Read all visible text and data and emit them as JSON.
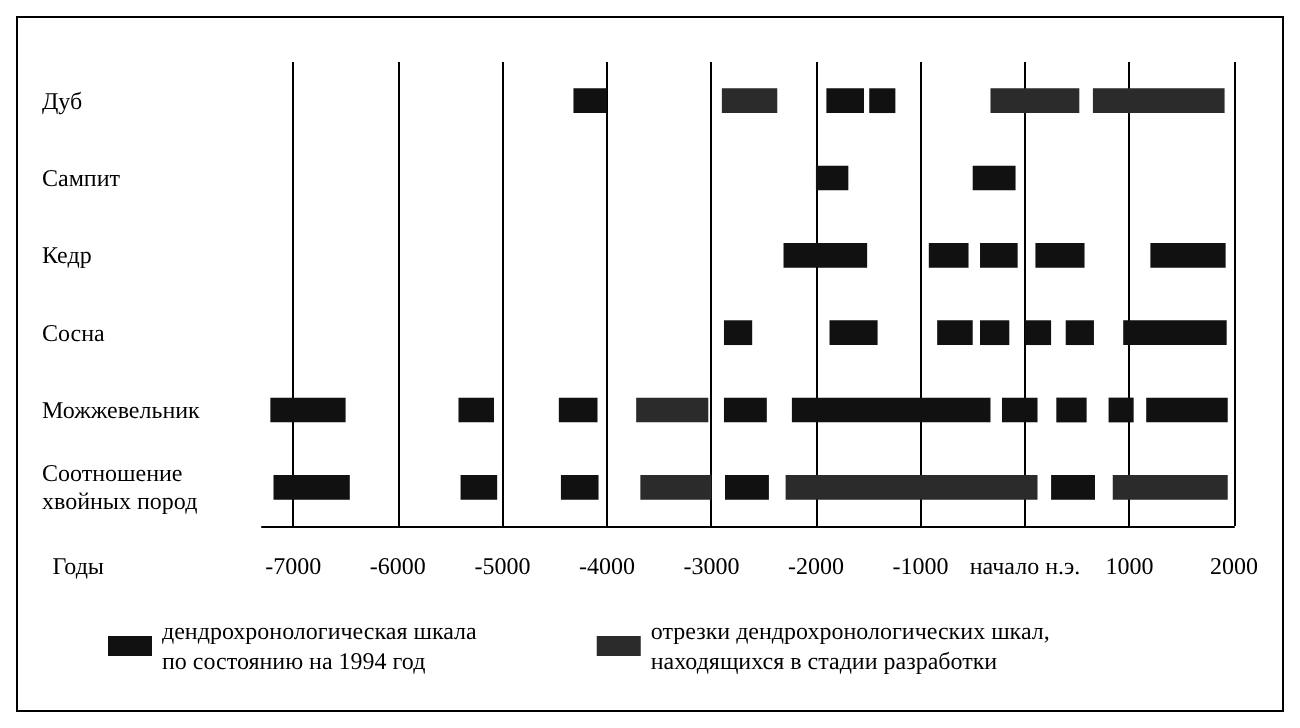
{
  "chart_data": {
    "type": "bar",
    "orientation": "horizontal",
    "xlabel": "Годы",
    "categories": [
      "Дуб",
      "Сампит",
      "Кедр",
      "Сосна",
      "Можжевельник",
      "Соотношение хвойных пород"
    ],
    "xlim": [
      -7300,
      2000
    ],
    "xticks": [
      -7000,
      -6000,
      -5000,
      -4000,
      -3000,
      -2000,
      -1000,
      {
        "value": 0,
        "label": "начало н.э."
      },
      1000,
      2000
    ],
    "grid": "x",
    "legend": "bottom",
    "series": [
      {
        "name": "дендрохронологическая шкала\nпо состоянию на 1994 год",
        "color": "#111111",
        "base": [
          -4320,
          -2000,
          -2310,
          -2880,
          -7220,
          -7190
        ],
        "values": [
          320,
          310,
          800,
          270,
          720,
          730
        ]
      },
      {
        "color": "#111111",
        "base": [
          -1900,
          -500,
          -920,
          -1870,
          -5420,
          -5400
        ],
        "values": [
          360,
          410,
          380,
          460,
          340,
          350
        ]
      },
      {
        "color": "#111111",
        "base": [
          -1490,
          null,
          -430,
          -840,
          -4460,
          -4440
        ],
        "values": [
          250,
          null,
          360,
          340,
          370,
          360
        ]
      },
      {
        "color": "#111111",
        "base": [
          null,
          null,
          100,
          -430,
          -2880,
          -2870
        ],
        "values": [
          null,
          null,
          470,
          280,
          410,
          420
        ]
      },
      {
        "color": "#111111",
        "base": [
          null,
          null,
          1200,
          0,
          -2230,
          250
        ],
        "values": [
          null,
          null,
          720,
          250,
          1900,
          420
        ]
      },
      {
        "color": "#111111",
        "base": [
          null,
          null,
          null,
          390,
          -220,
          null
        ],
        "values": [
          null,
          null,
          null,
          270,
          340,
          null
        ]
      },
      {
        "color": "#111111",
        "base": [
          null,
          null,
          null,
          940,
          300,
          null
        ],
        "values": [
          null,
          null,
          null,
          990,
          290,
          null
        ]
      },
      {
        "color": "#111111",
        "base": [
          null,
          null,
          null,
          null,
          800,
          null
        ],
        "values": [
          null,
          null,
          null,
          null,
          240,
          null
        ]
      },
      {
        "color": "#111111",
        "base": [
          null,
          null,
          null,
          null,
          1160,
          null
        ],
        "values": [
          null,
          null,
          null,
          null,
          780,
          null
        ]
      },
      {
        "name": "отрезки дендрохронологических шкал,\nнаходящихся в стадии разработки",
        "color": "#2b2b2b",
        "base": [
          -2900,
          null,
          null,
          null,
          -3720,
          -3680
        ],
        "values": [
          530,
          null,
          null,
          null,
          690,
          680
        ]
      },
      {
        "color": "#2b2b2b",
        "base": [
          -330,
          null,
          null,
          null,
          null,
          -2290
        ],
        "values": [
          850,
          null,
          null,
          null,
          null,
          2410
        ]
      },
      {
        "color": "#2b2b2b",
        "base": [
          650,
          null,
          null,
          null,
          null,
          840
        ],
        "values": [
          1260,
          null,
          null,
          null,
          null,
          1100
        ]
      }
    ]
  }
}
